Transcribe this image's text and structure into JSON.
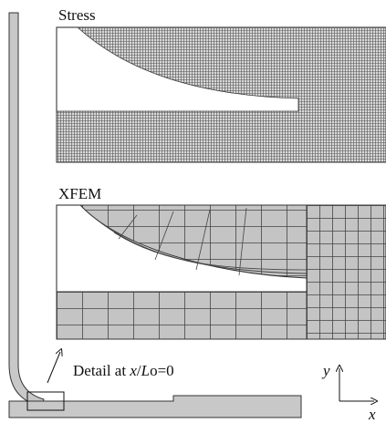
{
  "panels": [
    {
      "label": "Stress"
    },
    {
      "label": "XFEM"
    }
  ],
  "annotation": {
    "parts": [
      "Detail at ",
      "x",
      "/",
      "L",
      "o=0"
    ]
  },
  "axes": {
    "y": "y",
    "x": "x"
  }
}
